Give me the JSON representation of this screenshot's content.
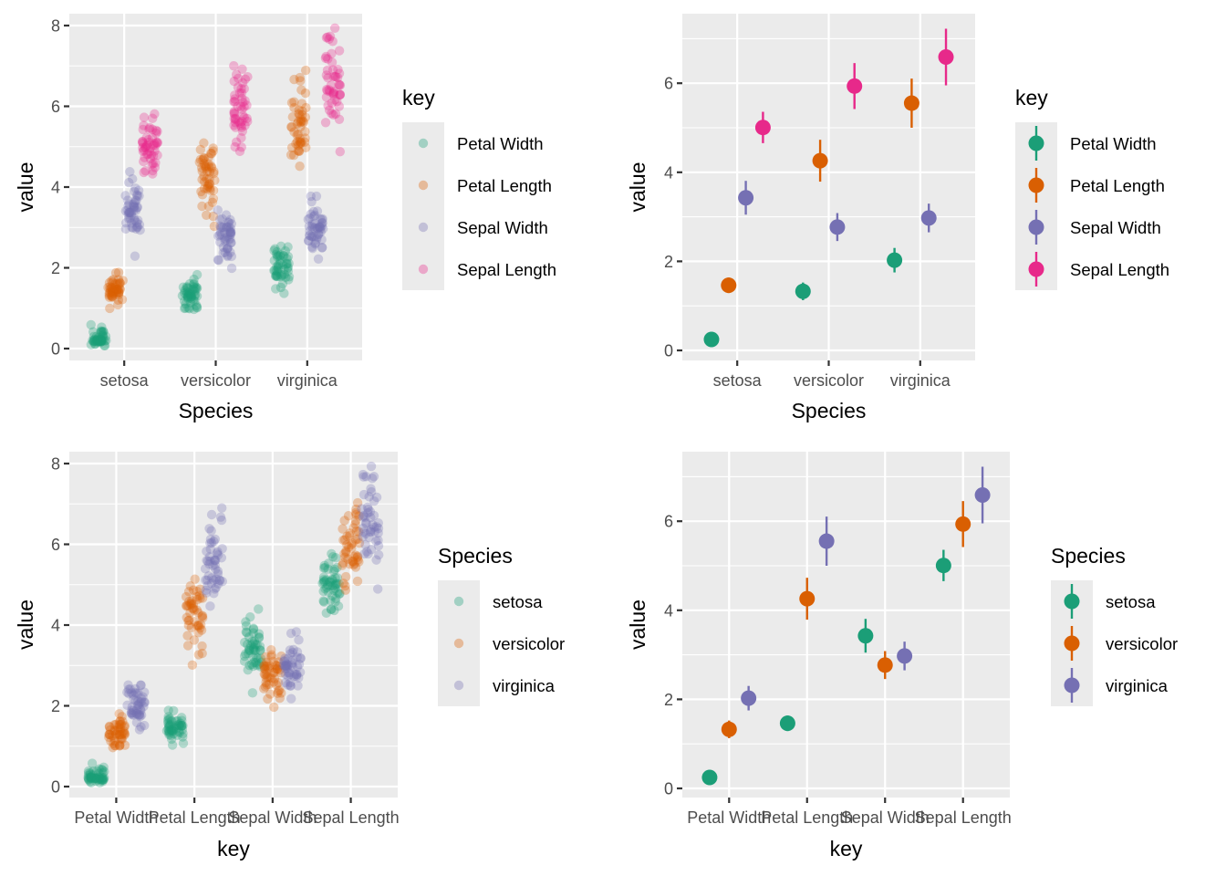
{
  "chart_data": [
    {
      "id": "p1",
      "type": "scatter",
      "geom": "jitter",
      "title": "",
      "xlabel": "Species",
      "ylabel": "value",
      "x_categories": [
        "setosa",
        "versicolor",
        "virginica"
      ],
      "ylim": [
        -0.3,
        8.3
      ],
      "y_ticks": [
        0,
        2,
        4,
        6,
        8
      ],
      "grid": true,
      "legend": {
        "title": "key",
        "position": "right",
        "entries": [
          "Petal Width",
          "Petal Length",
          "Sepal Width",
          "Sepal Length"
        ]
      },
      "color_by": "key",
      "point_alpha": 0.3
    },
    {
      "id": "p2",
      "type": "scatter",
      "geom": "pointrange",
      "title": "",
      "xlabel": "Species",
      "ylabel": "value",
      "x_categories": [
        "setosa",
        "versicolor",
        "virginica"
      ],
      "ylim": [
        -0.2,
        7.5
      ],
      "y_ticks": [
        0,
        2,
        4,
        6
      ],
      "grid": true,
      "legend": {
        "title": "key",
        "position": "right",
        "entries": [
          "Petal Width",
          "Petal Length",
          "Sepal Width",
          "Sepal Length"
        ]
      },
      "color_by": "key",
      "interval": "mean ± 1 sd"
    },
    {
      "id": "p3",
      "type": "scatter",
      "geom": "jitter",
      "title": "",
      "xlabel": "key",
      "ylabel": "value",
      "x_categories": [
        "Petal Width",
        "Petal Length",
        "Sepal Width",
        "Sepal Length"
      ],
      "ylim": [
        -0.3,
        8.3
      ],
      "y_ticks": [
        0,
        2,
        4,
        6,
        8
      ],
      "grid": true,
      "legend": {
        "title": "Species",
        "position": "right",
        "entries": [
          "setosa",
          "versicolor",
          "virginica"
        ]
      },
      "color_by": "Species",
      "point_alpha": 0.3
    },
    {
      "id": "p4",
      "type": "scatter",
      "geom": "pointrange",
      "title": "",
      "xlabel": "key",
      "ylabel": "value",
      "x_categories": [
        "Petal Width",
        "Petal Length",
        "Sepal Width",
        "Sepal Length"
      ],
      "ylim": [
        -0.2,
        7.5
      ],
      "y_ticks": [
        0,
        2,
        4,
        6
      ],
      "grid": true,
      "legend": {
        "title": "Species",
        "position": "right",
        "entries": [
          "setosa",
          "versicolor",
          "virginica"
        ]
      },
      "color_by": "Species",
      "interval": "mean ± 1 sd"
    }
  ],
  "colors": {
    "key": {
      "Petal Width": "#1b9e77",
      "Petal Length": "#d95f02",
      "Sepal Width": "#7570b3",
      "Sepal Length": "#e7298a"
    },
    "Species": {
      "setosa": "#1b9e77",
      "versicolor": "#d95f02",
      "virginica": "#7570b3"
    },
    "panel_bg": "#ebebeb",
    "grid": "#ffffff"
  },
  "summary": {
    "setosa": {
      "Petal Width": [
        0.246,
        0.105
      ],
      "Petal Length": [
        1.462,
        0.174
      ],
      "Sepal Width": [
        3.428,
        0.379
      ],
      "Sepal Length": [
        5.006,
        0.352
      ]
    },
    "versicolor": {
      "Petal Width": [
        1.326,
        0.198
      ],
      "Petal Length": [
        4.26,
        0.47
      ],
      "Sepal Width": [
        2.77,
        0.314
      ],
      "Sepal Length": [
        5.936,
        0.516
      ]
    },
    "virginica": {
      "Petal Width": [
        2.026,
        0.275
      ],
      "Petal Length": [
        5.552,
        0.552
      ],
      "Sepal Width": [
        2.974,
        0.322
      ],
      "Sepal Length": [
        6.588,
        0.636
      ]
    }
  },
  "observations": {
    "setosa": {
      "Sepal Length": [
        5.1,
        4.9,
        4.7,
        4.6,
        5.0,
        5.4,
        4.6,
        5.0,
        4.4,
        4.9,
        5.4,
        4.8,
        4.8,
        4.3,
        5.8,
        5.7,
        5.4,
        5.1,
        5.7,
        5.1,
        5.4,
        5.1,
        4.6,
        5.1,
        4.8,
        5.0,
        5.0,
        5.2,
        5.2,
        4.7,
        4.8,
        5.4,
        5.2,
        5.5,
        4.9,
        5.0,
        5.5,
        4.9,
        4.4,
        5.1,
        5.0,
        4.5,
        4.4,
        5.0,
        5.1,
        4.8,
        5.1,
        4.6,
        5.3,
        5.0
      ],
      "Sepal Width": [
        3.5,
        3.0,
        3.2,
        3.1,
        3.6,
        3.9,
        3.4,
        3.4,
        2.9,
        3.1,
        3.7,
        3.4,
        3.0,
        3.0,
        4.0,
        4.4,
        3.9,
        3.5,
        3.8,
        3.8,
        3.4,
        3.7,
        3.6,
        3.3,
        3.4,
        3.0,
        3.4,
        3.5,
        3.4,
        3.2,
        3.1,
        3.4,
        4.1,
        4.2,
        3.1,
        3.2,
        3.5,
        3.6,
        3.0,
        3.4,
        3.5,
        2.3,
        3.2,
        3.5,
        3.8,
        3.0,
        3.8,
        3.2,
        3.7,
        3.3
      ],
      "Petal Length": [
        1.4,
        1.4,
        1.3,
        1.5,
        1.4,
        1.7,
        1.4,
        1.5,
        1.4,
        1.5,
        1.5,
        1.6,
        1.4,
        1.1,
        1.2,
        1.5,
        1.3,
        1.4,
        1.7,
        1.5,
        1.7,
        1.5,
        1.0,
        1.7,
        1.9,
        1.6,
        1.6,
        1.5,
        1.4,
        1.6,
        1.6,
        1.5,
        1.5,
        1.4,
        1.5,
        1.2,
        1.3,
        1.4,
        1.3,
        1.5,
        1.3,
        1.3,
        1.3,
        1.6,
        1.9,
        1.4,
        1.6,
        1.4,
        1.5,
        1.4
      ],
      "Petal Width": [
        0.2,
        0.2,
        0.2,
        0.2,
        0.2,
        0.4,
        0.3,
        0.2,
        0.2,
        0.1,
        0.2,
        0.2,
        0.1,
        0.1,
        0.2,
        0.4,
        0.4,
        0.3,
        0.3,
        0.3,
        0.2,
        0.4,
        0.2,
        0.5,
        0.2,
        0.2,
        0.4,
        0.2,
        0.2,
        0.2,
        0.2,
        0.4,
        0.1,
        0.2,
        0.2,
        0.2,
        0.2,
        0.1,
        0.2,
        0.2,
        0.3,
        0.3,
        0.2,
        0.6,
        0.4,
        0.3,
        0.2,
        0.2,
        0.2,
        0.2
      ]
    },
    "versicolor": {
      "Sepal Length": [
        7.0,
        6.4,
        6.9,
        5.5,
        6.5,
        5.7,
        6.3,
        4.9,
        6.6,
        5.2,
        5.0,
        5.9,
        6.0,
        6.1,
        5.6,
        6.7,
        5.6,
        5.8,
        6.2,
        5.6,
        5.9,
        6.1,
        6.3,
        6.1,
        6.4,
        6.6,
        6.8,
        6.7,
        6.0,
        5.7,
        5.5,
        5.5,
        5.8,
        6.0,
        5.4,
        6.0,
        6.7,
        6.3,
        5.6,
        5.5,
        5.5,
        6.1,
        5.8,
        5.0,
        5.6,
        5.7,
        5.7,
        6.2,
        5.1,
        5.7
      ],
      "Sepal Width": [
        3.2,
        3.2,
        3.1,
        2.3,
        2.8,
        2.8,
        3.3,
        2.4,
        2.9,
        2.7,
        2.0,
        3.0,
        2.2,
        2.9,
        2.9,
        3.1,
        3.0,
        2.7,
        2.2,
        2.5,
        3.2,
        2.8,
        2.5,
        2.8,
        2.9,
        3.0,
        2.8,
        3.0,
        2.9,
        2.6,
        2.4,
        2.4,
        2.7,
        2.7,
        3.0,
        3.4,
        3.1,
        2.3,
        3.0,
        2.5,
        2.6,
        3.0,
        2.6,
        2.3,
        2.7,
        3.0,
        2.9,
        2.9,
        2.5,
        2.8
      ],
      "Petal Length": [
        4.7,
        4.5,
        4.9,
        4.0,
        4.6,
        4.5,
        4.7,
        3.3,
        4.6,
        3.9,
        3.5,
        4.2,
        4.0,
        4.7,
        3.6,
        4.4,
        4.5,
        4.1,
        4.5,
        3.9,
        4.8,
        4.0,
        4.9,
        4.7,
        4.3,
        4.4,
        4.8,
        5.0,
        4.5,
        3.5,
        3.8,
        3.7,
        3.9,
        5.1,
        4.5,
        4.5,
        4.7,
        4.4,
        4.1,
        4.0,
        4.4,
        4.6,
        4.0,
        3.3,
        4.2,
        4.2,
        4.2,
        4.3,
        3.0,
        4.1
      ],
      "Petal Width": [
        1.4,
        1.5,
        1.5,
        1.3,
        1.5,
        1.3,
        1.6,
        1.0,
        1.3,
        1.4,
        1.0,
        1.5,
        1.0,
        1.4,
        1.3,
        1.4,
        1.5,
        1.0,
        1.5,
        1.1,
        1.8,
        1.3,
        1.5,
        1.2,
        1.3,
        1.4,
        1.4,
        1.7,
        1.5,
        1.0,
        1.1,
        1.0,
        1.2,
        1.6,
        1.5,
        1.6,
        1.5,
        1.3,
        1.3,
        1.3,
        1.2,
        1.4,
        1.2,
        1.0,
        1.3,
        1.2,
        1.3,
        1.3,
        1.1,
        1.3
      ]
    },
    "virginica": {
      "Sepal Length": [
        6.3,
        5.8,
        7.1,
        6.3,
        6.5,
        7.6,
        4.9,
        7.3,
        6.7,
        7.2,
        6.5,
        6.4,
        6.8,
        5.7,
        5.8,
        6.4,
        6.5,
        7.7,
        7.7,
        6.0,
        6.9,
        5.6,
        7.7,
        6.3,
        6.7,
        7.2,
        6.2,
        6.1,
        6.4,
        7.2,
        7.4,
        7.9,
        6.4,
        6.3,
        6.1,
        7.7,
        6.3,
        6.4,
        6.0,
        6.9,
        6.7,
        6.9,
        5.8,
        6.8,
        6.7,
        6.7,
        6.3,
        6.5,
        6.2,
        5.9
      ],
      "Sepal Width": [
        3.3,
        2.7,
        3.0,
        2.9,
        3.0,
        3.0,
        2.5,
        2.9,
        2.5,
        3.6,
        3.2,
        2.7,
        3.0,
        2.5,
        2.8,
        3.2,
        3.0,
        3.8,
        2.6,
        2.2,
        3.2,
        2.8,
        2.8,
        2.7,
        3.3,
        3.2,
        2.8,
        3.0,
        2.8,
        3.0,
        2.8,
        3.8,
        2.8,
        2.8,
        2.6,
        3.0,
        3.4,
        3.1,
        3.0,
        3.1,
        3.1,
        3.1,
        2.7,
        3.2,
        3.3,
        3.0,
        2.5,
        3.0,
        3.4,
        3.0
      ],
      "Petal Length": [
        6.0,
        5.1,
        5.9,
        5.6,
        5.8,
        6.6,
        4.5,
        6.3,
        5.8,
        6.1,
        5.1,
        5.3,
        5.5,
        5.0,
        5.1,
        5.3,
        5.5,
        6.7,
        6.9,
        5.0,
        5.7,
        4.9,
        6.7,
        4.9,
        5.7,
        6.0,
        4.8,
        4.9,
        5.6,
        5.8,
        6.1,
        6.4,
        5.6,
        5.1,
        5.6,
        6.1,
        5.6,
        5.5,
        4.8,
        5.4,
        5.6,
        5.1,
        5.1,
        5.9,
        5.7,
        5.2,
        5.0,
        5.2,
        5.4,
        5.1
      ],
      "Petal Width": [
        2.5,
        1.9,
        2.1,
        1.8,
        2.2,
        2.1,
        1.7,
        1.8,
        1.8,
        2.5,
        2.0,
        1.9,
        2.1,
        2.0,
        2.4,
        2.3,
        1.8,
        2.2,
        2.3,
        1.5,
        2.3,
        2.0,
        2.0,
        1.8,
        2.1,
        1.8,
        1.8,
        1.8,
        2.1,
        1.6,
        1.9,
        2.0,
        2.2,
        1.5,
        1.4,
        2.3,
        2.4,
        1.8,
        1.8,
        2.1,
        2.4,
        2.3,
        1.9,
        2.3,
        2.5,
        2.3,
        1.9,
        2.0,
        2.3,
        1.8
      ]
    }
  }
}
